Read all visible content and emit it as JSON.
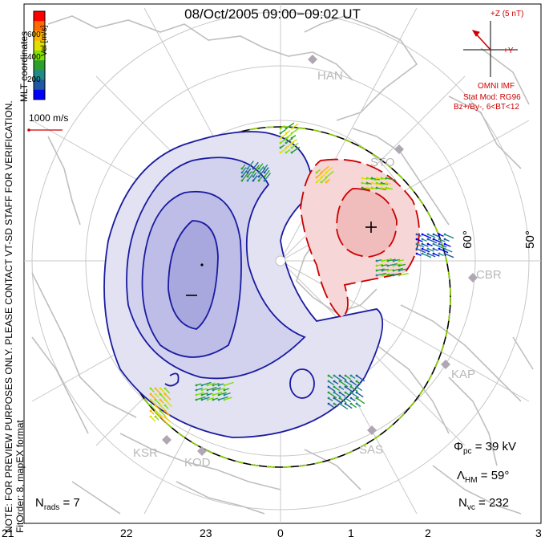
{
  "title": "08/Oct/2005 09:00−09:02 UT",
  "side_note_line1": "NOTE: FOR PREVIEW PURPOSES ONLY. PLEASE CONTACT VT-SD STAFF FOR VERIFICATION.",
  "side_note_line2": "FitOrder: 8, mapEX format",
  "coord_label": "MLT coordinates",
  "velocity_scale": {
    "unit_label": "Vel [m/s]",
    "ticks": [
      "600",
      "400",
      "200"
    ],
    "colors": [
      "#ff0000",
      "#ff6a00",
      "#ffb000",
      "#e0e000",
      "#80e000",
      "#2ca02c",
      "#1f8a8a",
      "#1f5aa0",
      "#0000ff"
    ]
  },
  "reference_vector_label": "1000 m/s",
  "imf": {
    "z_label": "+Z (5 nT)",
    "y_label": "+Y",
    "source": "OMNI IMF",
    "model": "Stat Mod: RG96",
    "condition": "Bz+/By-, 6<BT<12"
  },
  "latitude_labels": [
    "60°",
    "50°"
  ],
  "stations": [
    "HAN",
    "STO",
    "CBR",
    "KAP",
    "SAS",
    "KOD",
    "KSR"
  ],
  "parameters": {
    "phi_pc_label": "Φ",
    "phi_pc_sub": "pc",
    "phi_pc_value": " = 39 kV",
    "lambda_hm_label": "Λ",
    "lambda_hm_sub": "HM",
    "lambda_hm_value": " = 59°",
    "n_vc_label": "N",
    "n_vc_sub": "vc",
    "n_vc_value": " = 232",
    "n_rads_label": "N",
    "n_rads_sub": "rads",
    "n_rads_value": " = 7"
  },
  "mlt_ticks": [
    "21",
    "22",
    "23",
    "0",
    "1",
    "2",
    "3"
  ],
  "convection": {
    "negative_cell_marker": "−",
    "positive_cell_marker": "+"
  },
  "colors": {
    "negative_fill": "#c8c8f0",
    "positive_fill": "#f4c4c4",
    "negative_contour": "#1a1aa0",
    "positive_contour": "#cc0000",
    "coast": "#bfbfbf",
    "imf_color": "#cc0000"
  }
}
